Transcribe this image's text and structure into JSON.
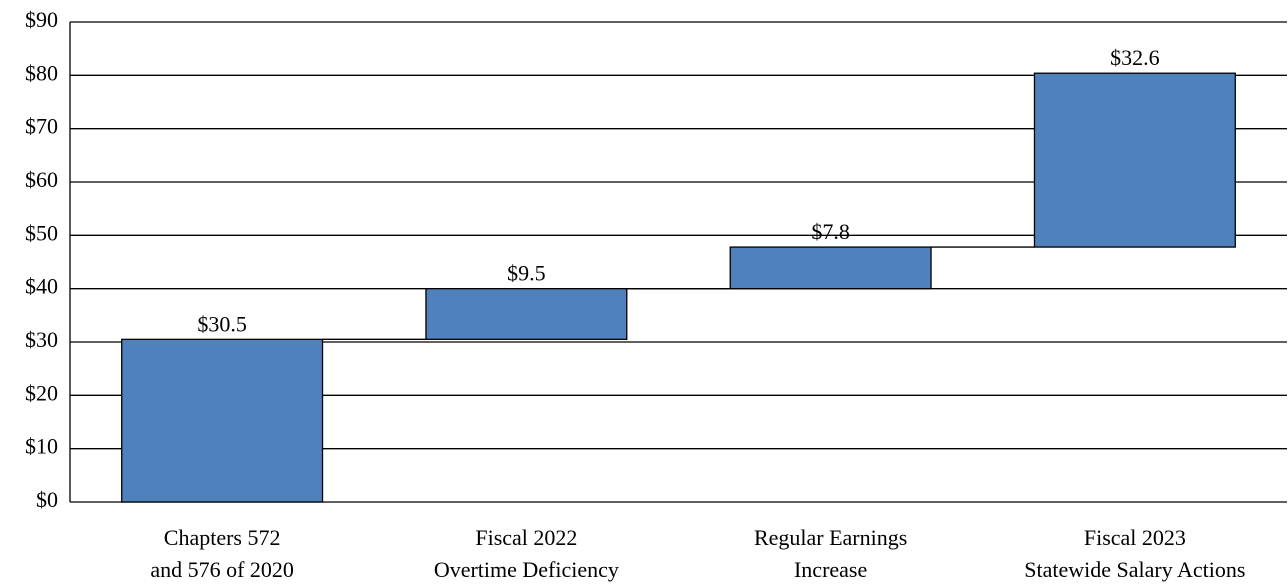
{
  "chart_data": {
    "type": "waterfall",
    "categories": [
      [
        "Chapters 572",
        "and 576 of 2020"
      ],
      [
        "Fiscal 2022",
        "Overtime Deficiency"
      ],
      [
        "Regular Earnings",
        "Increase"
      ],
      [
        "Fiscal 2023",
        "Statewide Salary Actions"
      ]
    ],
    "values": [
      30.5,
      9.5,
      7.8,
      32.6
    ],
    "value_labels": [
      "$30.5",
      "$9.5",
      "$7.8",
      "$32.6"
    ],
    "color": "#4f81bd",
    "ylim": [
      0,
      90
    ],
    "yticks": [
      {
        "value": 0,
        "label": "$0"
      },
      {
        "value": 10,
        "label": "$10"
      },
      {
        "value": 20,
        "label": "$20"
      },
      {
        "value": 30,
        "label": "$30"
      },
      {
        "value": 40,
        "label": "$40"
      },
      {
        "value": 50,
        "label": "$50"
      },
      {
        "value": 60,
        "label": "$60"
      },
      {
        "value": 70,
        "label": "$70"
      },
      {
        "value": 80,
        "label": "$80"
      },
      {
        "value": 90,
        "label": "$90"
      }
    ],
    "grid": true
  }
}
